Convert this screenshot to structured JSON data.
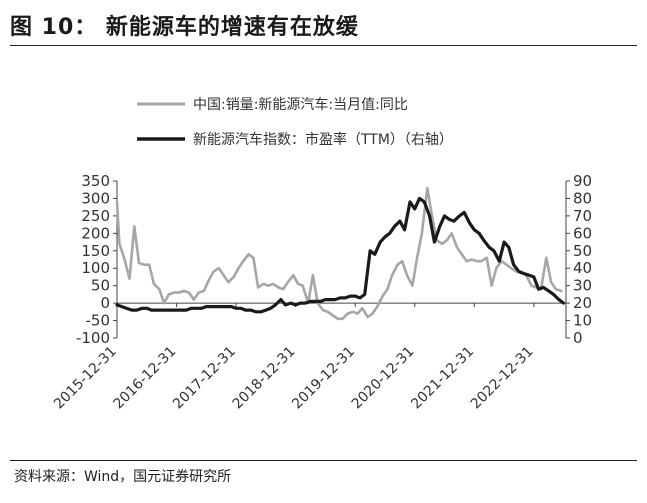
{
  "header": {
    "title": "图 10：  新能源车的增速有在放缓"
  },
  "footer": {
    "source": "资料来源：Wind，国元证券研究所"
  },
  "chart_data": {
    "type": "line",
    "title": "",
    "legend_position": "top",
    "x_tick_labels": [
      "2015-12-31",
      "2016-12-31",
      "2017-12-31",
      "2018-12-31",
      "2019-12-31",
      "2020-12-31",
      "2021-12-31",
      "2022-12-31"
    ],
    "y_left": {
      "lim": [
        -100,
        350
      ],
      "ticks": [
        "350",
        "300",
        "250",
        "200",
        "150",
        "100",
        "50",
        "0",
        "-50",
        "-100"
      ]
    },
    "y_right": {
      "lim": [
        0,
        90
      ],
      "ticks": [
        "90",
        "80",
        "70",
        "60",
        "50",
        "40",
        "30",
        "20",
        "10",
        "0"
      ]
    },
    "series": [
      {
        "name": "中国:销量:新能源汽车:当月值:同比",
        "axis": "left",
        "color": "#a6a6a6",
        "x": [
          2015.96,
          2016.0,
          2016.08,
          2016.17,
          2016.25,
          2016.33,
          2016.42,
          2016.5,
          2016.58,
          2016.67,
          2016.75,
          2016.83,
          2016.92,
          2017.0,
          2017.08,
          2017.17,
          2017.25,
          2017.33,
          2017.42,
          2017.5,
          2017.58,
          2017.67,
          2017.75,
          2017.83,
          2017.92,
          2018.0,
          2018.08,
          2018.17,
          2018.25,
          2018.33,
          2018.42,
          2018.5,
          2018.58,
          2018.67,
          2018.75,
          2018.83,
          2018.92,
          2019.0,
          2019.08,
          2019.17,
          2019.25,
          2019.33,
          2019.42,
          2019.5,
          2019.58,
          2019.67,
          2019.75,
          2019.83,
          2019.92,
          2020.0,
          2020.08,
          2020.17,
          2020.25,
          2020.33,
          2020.42,
          2020.5,
          2020.58,
          2020.67,
          2020.75,
          2020.83,
          2020.92,
          2021.0,
          2021.08,
          2021.17,
          2021.25,
          2021.33,
          2021.42,
          2021.5,
          2021.58,
          2021.67,
          2021.75,
          2021.83,
          2021.92,
          2022.0,
          2022.08,
          2022.17,
          2022.25,
          2022.33,
          2022.42,
          2022.5,
          2022.58,
          2022.67,
          2022.75,
          2022.83,
          2022.92,
          2023.0,
          2023.08,
          2023.17,
          2023.25,
          2023.33,
          2023.42
        ],
        "y": [
          290,
          170,
          130,
          70,
          220,
          115,
          110,
          110,
          55,
          40,
          0,
          25,
          30,
          30,
          35,
          30,
          10,
          30,
          35,
          65,
          90,
          100,
          80,
          60,
          75,
          100,
          120,
          140,
          130,
          45,
          55,
          50,
          55,
          45,
          40,
          60,
          80,
          55,
          50,
          0,
          80,
          0,
          -20,
          -25,
          -35,
          -45,
          -45,
          -30,
          -25,
          -30,
          -15,
          -40,
          -30,
          -10,
          20,
          40,
          80,
          110,
          120,
          80,
          50,
          130,
          200,
          330,
          250,
          180,
          170,
          180,
          200,
          160,
          140,
          120,
          125,
          120,
          120,
          130,
          50,
          100,
          120,
          110,
          100,
          90,
          90,
          80,
          50,
          45,
          40,
          130,
          60,
          40,
          35
        ]
      },
      {
        "name": "新能源汽车指数：市盈率（TTM）（右轴）",
        "axis": "right",
        "color": "#1a1a1a",
        "x": [
          2015.96,
          2016.04,
          2016.12,
          2016.21,
          2016.29,
          2016.38,
          2016.46,
          2016.54,
          2016.62,
          2016.71,
          2016.79,
          2016.88,
          2016.96,
          2017.04,
          2017.12,
          2017.21,
          2017.29,
          2017.38,
          2017.46,
          2017.54,
          2017.62,
          2017.71,
          2017.79,
          2017.88,
          2017.96,
          2018.04,
          2018.12,
          2018.21,
          2018.29,
          2018.38,
          2018.46,
          2018.54,
          2018.62,
          2018.71,
          2018.79,
          2018.88,
          2018.96,
          2019.04,
          2019.12,
          2019.21,
          2019.29,
          2019.38,
          2019.46,
          2019.54,
          2019.62,
          2019.71,
          2019.79,
          2019.88,
          2019.96,
          2020.04,
          2020.12,
          2020.21,
          2020.29,
          2020.38,
          2020.46,
          2020.54,
          2020.62,
          2020.71,
          2020.79,
          2020.88,
          2020.96,
          2021.04,
          2021.12,
          2021.21,
          2021.29,
          2021.38,
          2021.46,
          2021.54,
          2021.62,
          2021.71,
          2021.79,
          2021.88,
          2021.96,
          2022.04,
          2022.12,
          2022.21,
          2022.29,
          2022.38,
          2022.46,
          2022.54,
          2022.62,
          2022.71,
          2022.79,
          2022.88,
          2022.96,
          2023.04,
          2023.12,
          2023.21,
          2023.29,
          2023.38,
          2023.46
        ],
        "y": [
          19,
          18,
          17,
          16,
          16,
          17,
          17,
          16,
          16,
          16,
          16,
          16,
          16,
          16,
          16,
          17,
          17,
          17,
          18,
          18,
          18,
          18,
          18,
          18,
          17,
          17,
          16,
          16,
          15,
          15,
          16,
          17,
          19,
          22,
          19,
          20,
          19,
          20,
          20,
          21,
          21,
          21,
          22,
          22,
          22,
          23,
          23,
          24,
          24,
          23,
          25,
          50,
          48,
          55,
          58,
          60,
          64,
          67,
          62,
          78,
          74,
          80,
          78,
          70,
          55,
          64,
          70,
          68,
          67,
          70,
          72,
          66,
          62,
          60,
          56,
          52,
          50,
          44,
          55,
          52,
          42,
          38,
          37,
          36,
          35,
          28,
          29,
          27,
          25,
          22,
          20
        ]
      }
    ]
  }
}
